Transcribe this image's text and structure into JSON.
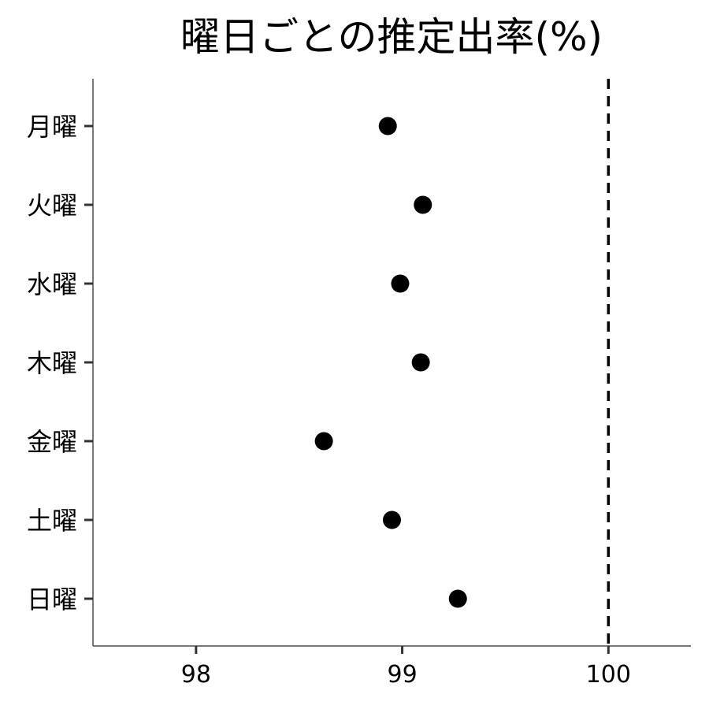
{
  "chart_data": {
    "type": "scatter",
    "title": "曜日ごとの推定出率(%)",
    "xlabel": "",
    "ylabel": "",
    "categories": [
      "月曜",
      "火曜",
      "水曜",
      "木曜",
      "金曜",
      "土曜",
      "日曜"
    ],
    "values": [
      98.93,
      99.1,
      98.99,
      99.09,
      98.62,
      98.95,
      99.27
    ],
    "xlim": [
      97.5,
      100.4
    ],
    "x_ticks": [
      98,
      99,
      100
    ],
    "x_tick_labels": [
      "98",
      "99",
      "100"
    ],
    "reference_line": {
      "x": 100,
      "style": "dashed",
      "color": "#000000"
    },
    "point_color": "#000000",
    "grid": false,
    "legend": "none"
  }
}
